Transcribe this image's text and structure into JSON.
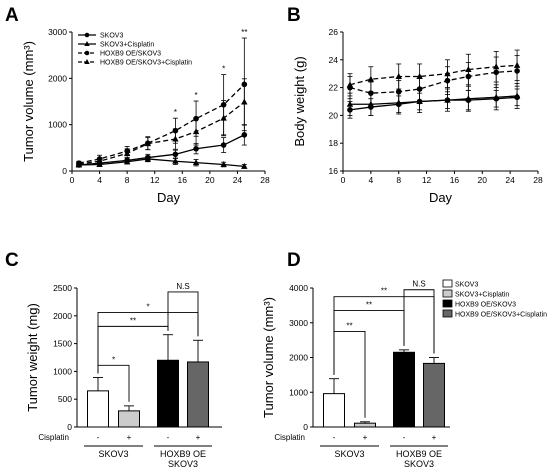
{
  "chart_data": [
    {
      "panel": "A",
      "type": "line",
      "xlabel": "Day",
      "ylabel": "Tumor volume (mm³)",
      "xlim": [
        0,
        28
      ],
      "ylim": [
        0,
        3000
      ],
      "xticks": [
        "0",
        "4",
        "8",
        "12",
        "16",
        "20",
        "24",
        "28"
      ],
      "yticks": [
        "0",
        "1000",
        "2000",
        "3000"
      ],
      "legend_position": "top-left",
      "x": [
        1,
        4,
        8,
        11,
        15,
        18,
        22,
        25
      ],
      "series": [
        {
          "name": "SKOV3",
          "dash": "solid",
          "marker": "circle",
          "values": [
            130,
            170,
            230,
            290,
            360,
            480,
            560,
            780
          ],
          "errors": [
            30,
            40,
            60,
            70,
            90,
            110,
            160,
            220
          ]
        },
        {
          "name": "SKOV3+Cisplatin",
          "dash": "solid",
          "marker": "triangle",
          "values": [
            130,
            140,
            200,
            260,
            210,
            180,
            140,
            100
          ],
          "errors": [
            30,
            40,
            50,
            60,
            70,
            70,
            50,
            40
          ]
        },
        {
          "name": "HOXB9 OE/SKOV3",
          "dash": "dashed",
          "marker": "circle",
          "values": [
            170,
            260,
            430,
            600,
            870,
            1130,
            1430,
            1870
          ],
          "errors": [
            40,
            80,
            100,
            140,
            270,
            380,
            650,
            1000
          ]
        },
        {
          "name": "HOXB9 OE/SKOV3+Cisplatin",
          "dash": "dashed",
          "marker": "triangle",
          "values": [
            150,
            210,
            380,
            590,
            690,
            850,
            1140,
            1490
          ],
          "errors": [
            40,
            70,
            100,
            130,
            220,
            290,
            380,
            500
          ]
        }
      ],
      "annotations": [
        {
          "x": 15,
          "text": "*"
        },
        {
          "x": 18,
          "text": "*"
        },
        {
          "x": 22,
          "text": "*"
        },
        {
          "x": 25,
          "text": "**"
        }
      ]
    },
    {
      "panel": "B",
      "type": "line",
      "xlabel": "Day",
      "ylabel": "Body weight (g)",
      "xlim": [
        0,
        28
      ],
      "ylim": [
        16,
        26
      ],
      "xticks": [
        "0",
        "4",
        "8",
        "12",
        "16",
        "20",
        "24",
        "28"
      ],
      "yticks": [
        "16",
        "18",
        "20",
        "22",
        "24",
        "26"
      ],
      "x": [
        1,
        4,
        8,
        11,
        15,
        18,
        22,
        25
      ],
      "series": [
        {
          "dash": "solid",
          "marker": "circle",
          "values": [
            20.4,
            20.6,
            20.8,
            21.0,
            21.1,
            21.1,
            21.2,
            21.3
          ],
          "errors": [
            0.6,
            0.6,
            0.6,
            0.6,
            0.6,
            0.7,
            0.6,
            0.6
          ]
        },
        {
          "dash": "solid",
          "marker": "triangle",
          "values": [
            20.8,
            20.8,
            20.9,
            21.0,
            21.1,
            21.2,
            21.3,
            21.4
          ],
          "errors": [
            0.8,
            0.8,
            0.8,
            0.8,
            0.8,
            0.9,
            0.9,
            0.9
          ]
        },
        {
          "dash": "dashed",
          "marker": "circle",
          "values": [
            22.0,
            21.6,
            21.7,
            21.9,
            22.5,
            22.8,
            23.1,
            23.2
          ],
          "errors": [
            0.8,
            0.8,
            0.8,
            0.9,
            1.0,
            1.0,
            1.1,
            1.1
          ]
        },
        {
          "dash": "dashed",
          "marker": "triangle",
          "values": [
            22.2,
            22.6,
            22.8,
            22.8,
            23.0,
            23.3,
            23.5,
            23.6
          ],
          "errors": [
            0.8,
            0.9,
            0.9,
            0.9,
            1.0,
            1.1,
            1.1,
            1.1
          ]
        }
      ]
    },
    {
      "panel": "C",
      "type": "bar",
      "ylabel": "Tumor weight (mg)",
      "ylim": [
        0,
        2500
      ],
      "yticks": [
        "0",
        "500",
        "1000",
        "1500",
        "2000",
        "2500"
      ],
      "values": [
        650,
        290,
        1200,
        1170
      ],
      "errors": [
        240,
        90,
        460,
        390
      ],
      "colors": [
        "#ffffff",
        "#cccccc",
        "#000000",
        "#666666"
      ],
      "cisplatin_label": "Cisplatin",
      "cisplatin_marks": [
        "-",
        "+",
        "-",
        "+"
      ],
      "groups": [
        {
          "label": "SKOV3",
          "bars": [
            0,
            1
          ]
        },
        {
          "label": "HOXB9 OE\nSKOV3",
          "bars": [
            2,
            3
          ]
        }
      ],
      "brackets": [
        {
          "from": 2,
          "to": 3,
          "y": 2430,
          "text": "N.S"
        },
        {
          "from": 0,
          "to": 3,
          "y": 2060,
          "text": "*"
        },
        {
          "from": 0,
          "to": 2,
          "y": 1810,
          "text": "**"
        },
        {
          "from": 0,
          "to": 1,
          "y": 1110,
          "text": "*"
        }
      ]
    },
    {
      "panel": "D",
      "type": "bar",
      "ylabel": "Tumor volume (mm³)",
      "ylim": [
        0,
        4000
      ],
      "yticks": [
        "0",
        "1000",
        "2000",
        "3000",
        "4000"
      ],
      "values": [
        960,
        110,
        2150,
        1830
      ],
      "errors": [
        430,
        40,
        70,
        170
      ],
      "colors": [
        "#ffffff",
        "#cccccc",
        "#000000",
        "#666666"
      ],
      "cisplatin_label": "Cisplatin",
      "cisplatin_marks": [
        "-",
        "+",
        "-",
        "+"
      ],
      "groups": [
        {
          "label": "SKOV3",
          "bars": [
            0,
            1
          ]
        },
        {
          "label": "HOXB9 OE\nSKOV3",
          "bars": [
            2,
            3
          ]
        }
      ],
      "legend_position": "top-right",
      "legend": [
        "SKOV3",
        "SKOV3+Cisplatin",
        "HOXB9 OE/SKOV3",
        "HOXB9 OE/SKOV3+Cisplatin"
      ],
      "brackets": [
        {
          "from": 2,
          "to": 3,
          "y": 3950,
          "text": "N.S"
        },
        {
          "from": 0,
          "to": 3,
          "y": 3750,
          "text": "**"
        },
        {
          "from": 0,
          "to": 2,
          "y": 3350,
          "text": "**"
        },
        {
          "from": 0,
          "to": 1,
          "y": 2750,
          "text": "**"
        }
      ]
    }
  ]
}
